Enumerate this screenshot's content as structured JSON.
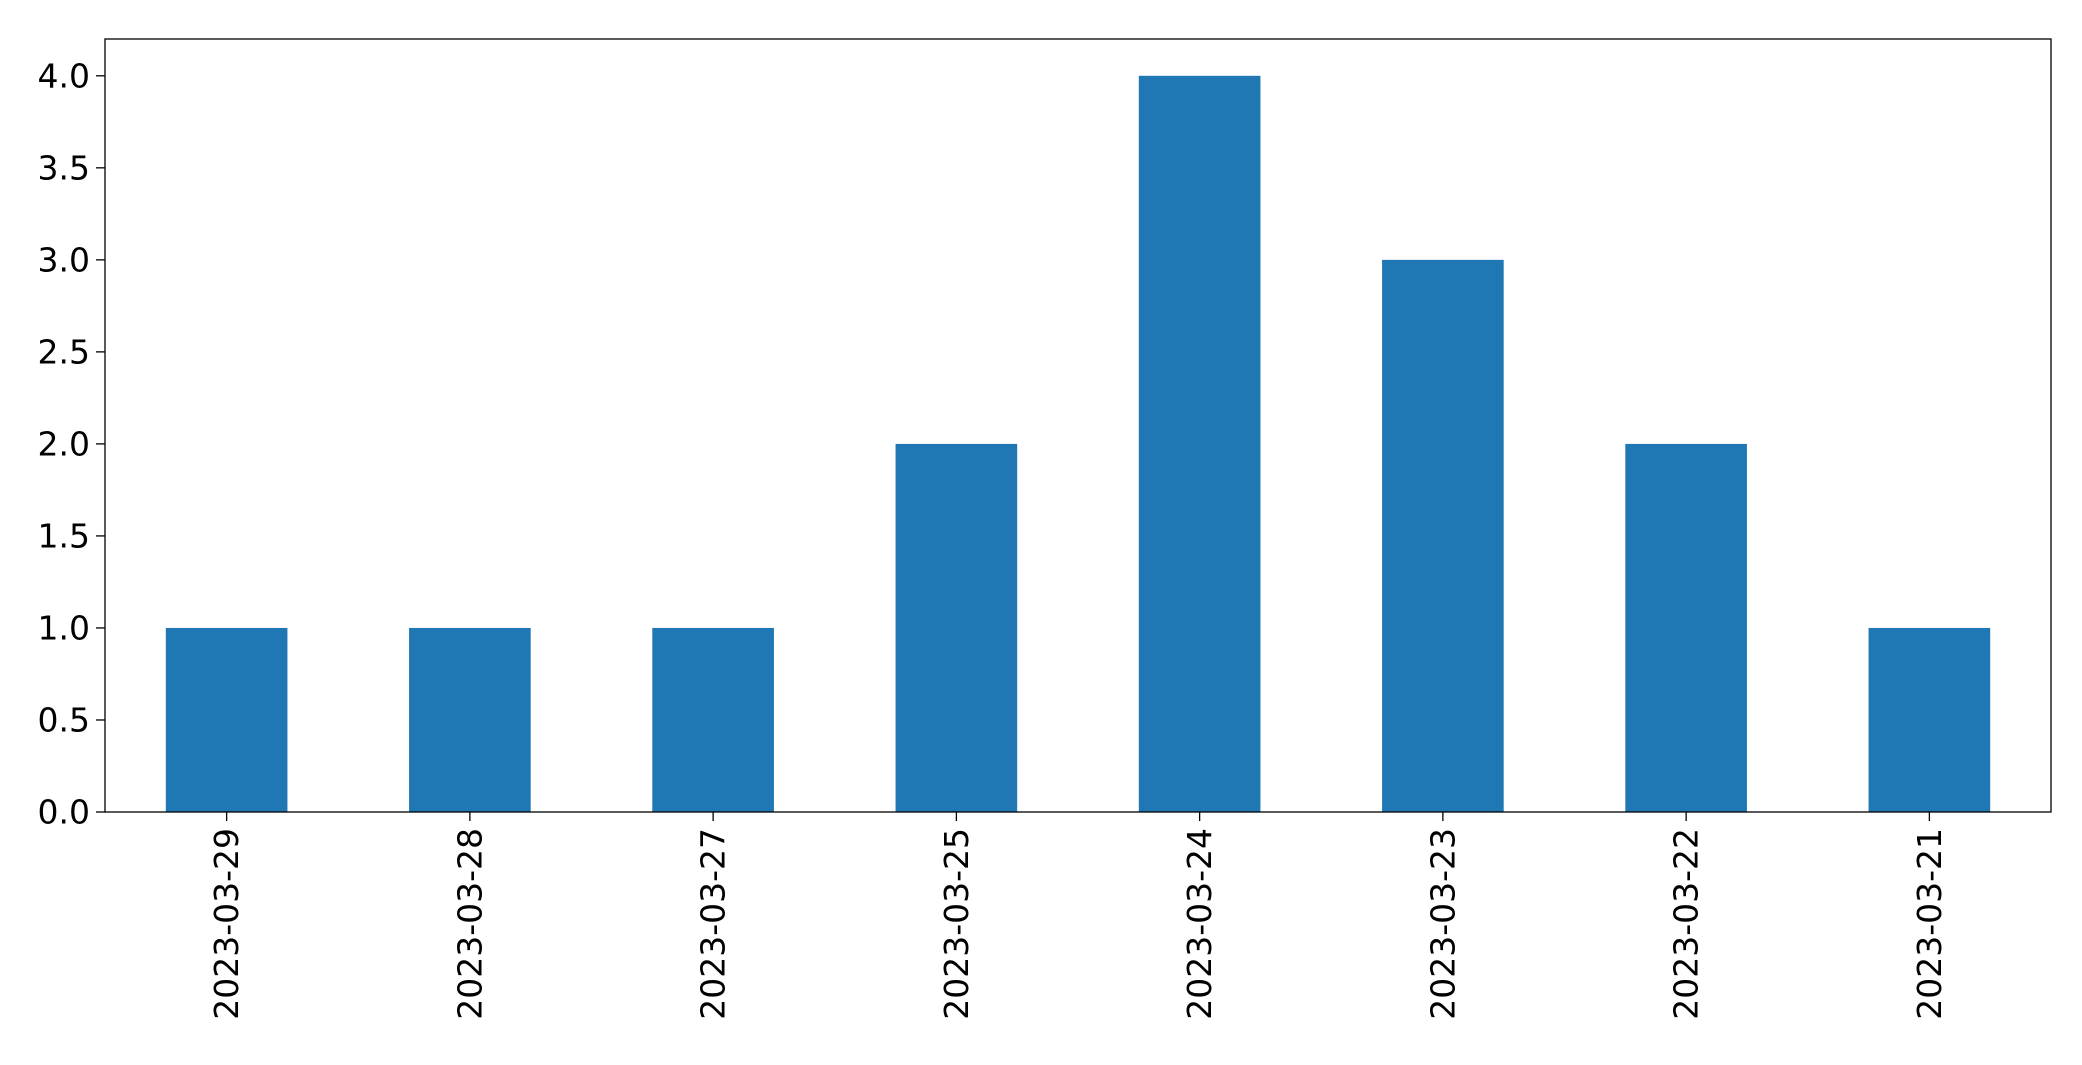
{
  "chart_data": {
    "type": "bar",
    "title": "",
    "xlabel": "",
    "ylabel": "",
    "categories": [
      "2023-03-29",
      "2023-03-28",
      "2023-03-27",
      "2023-03-25",
      "2023-03-24",
      "2023-03-23",
      "2023-03-22",
      "2023-03-21"
    ],
    "values": [
      1,
      1,
      1,
      2,
      4,
      3,
      2,
      1
    ],
    "ylim": [
      0,
      4.2
    ],
    "yticks": [
      0.0,
      0.5,
      1.0,
      1.5,
      2.0,
      2.5,
      3.0,
      3.5,
      4.0
    ],
    "ytick_labels": [
      "0.0",
      "0.5",
      "1.0",
      "1.5",
      "2.0",
      "2.5",
      "3.0",
      "3.5",
      "4.0"
    ],
    "xtick_rotation": "vertical",
    "grid": false,
    "legend": "none",
    "bar_color": "#1f77b4"
  }
}
